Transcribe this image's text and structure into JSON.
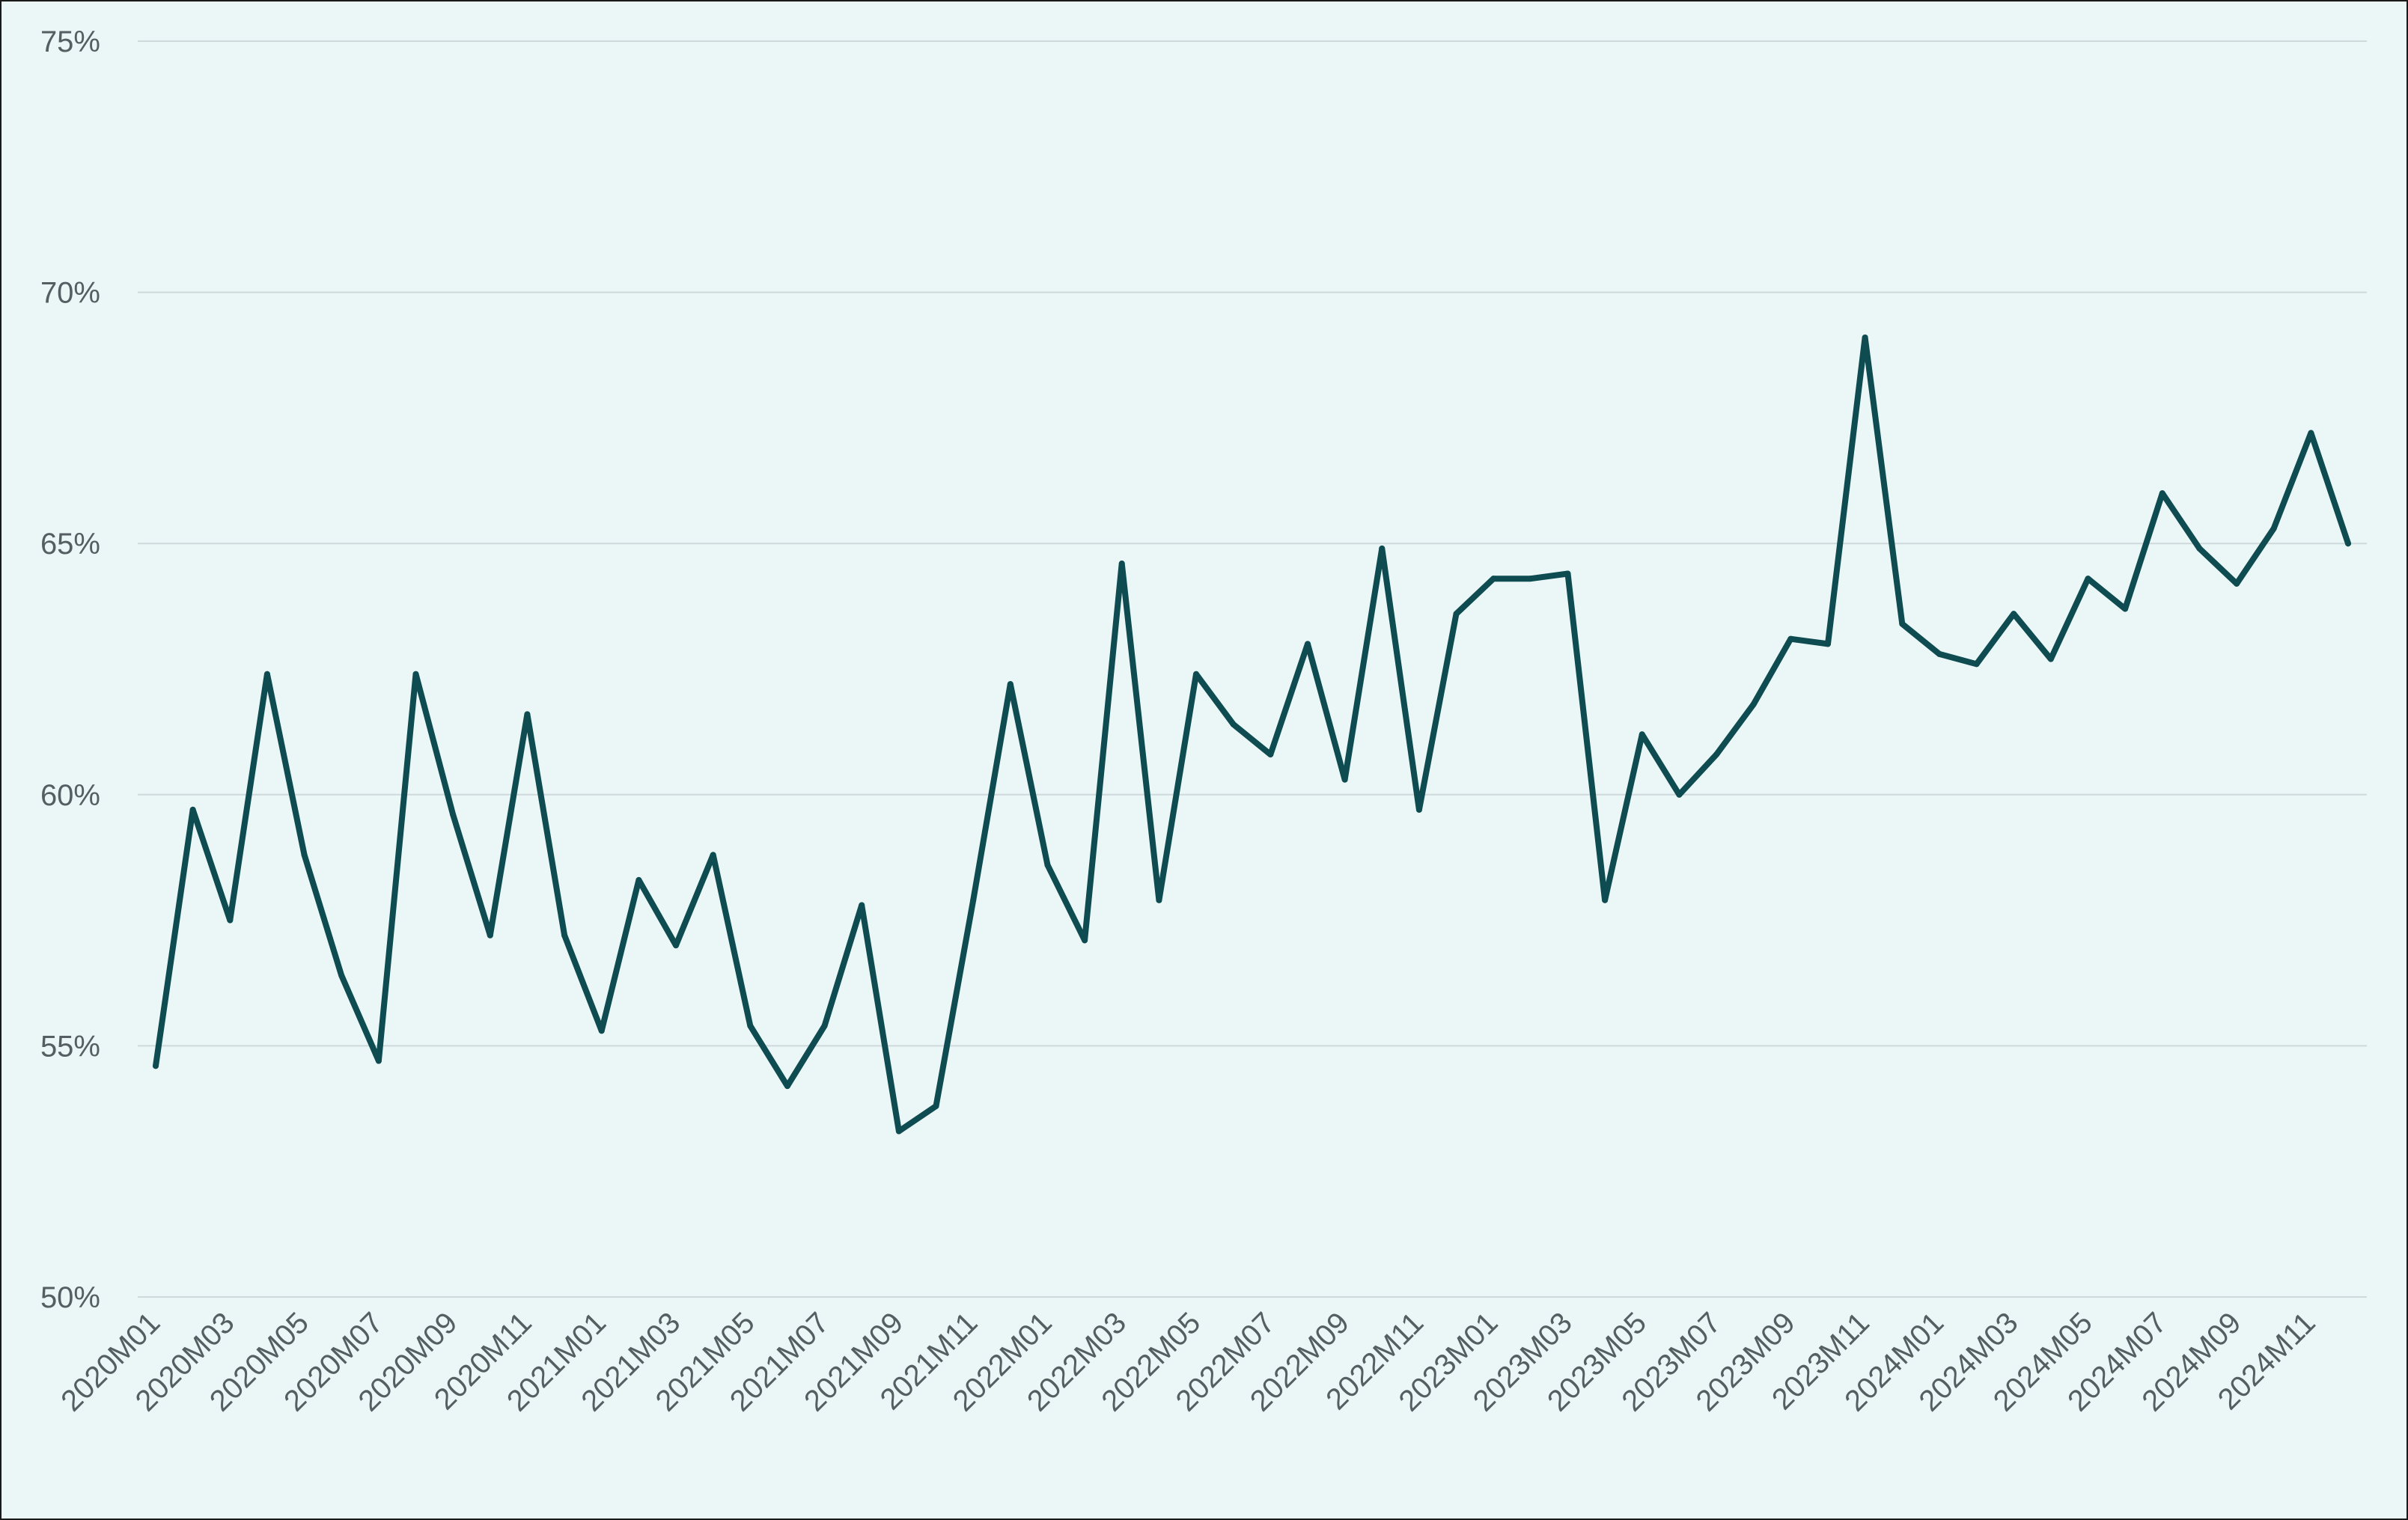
{
  "colors": {
    "background": "#eaf7f6",
    "grid": "#cfd8db",
    "line": "#0e4c52",
    "tick_text": "#555e62"
  },
  "chart_data": {
    "type": "line",
    "title": "",
    "xlabel": "",
    "ylabel": "",
    "ylim": [
      50,
      75
    ],
    "y_ticks": [
      50,
      55,
      60,
      65,
      70,
      75
    ],
    "y_tick_labels": [
      "50%",
      "55%",
      "60%",
      "65%",
      "70%",
      "75%"
    ],
    "grid": "horizontal",
    "legend": "none",
    "x": [
      "2020M01",
      "2020M02",
      "2020M03",
      "2020M04",
      "2020M05",
      "2020M06",
      "2020M07",
      "2020M08",
      "2020M09",
      "2020M10",
      "2020M11",
      "2020M12",
      "2021M01",
      "2021M02",
      "2021M03",
      "2021M04",
      "2021M05",
      "2021M06",
      "2021M07",
      "2021M08",
      "2021M09",
      "2021M10",
      "2021M11",
      "2021M12",
      "2022M01",
      "2022M02",
      "2022M03",
      "2022M04",
      "2022M05",
      "2022M06",
      "2022M07",
      "2022M08",
      "2022M09",
      "2022M10",
      "2022M11",
      "2022M12",
      "2023M01",
      "2023M02",
      "2023M03",
      "2023M04",
      "2023M05",
      "2023M06",
      "2023M07",
      "2023M08",
      "2023M09",
      "2023M10",
      "2023M11",
      "2023M12",
      "2024M01",
      "2024M02",
      "2024M03",
      "2024M04",
      "2024M05",
      "2024M06",
      "2024M07",
      "2024M08",
      "2024M09",
      "2024M10",
      "2024M11",
      "2024M12"
    ],
    "x_tick_labels": [
      "2020M01",
      "2020M03",
      "2020M05",
      "2020M07",
      "2020M09",
      "2020M11",
      "2021M01",
      "2021M03",
      "2021M05",
      "2021M07",
      "2021M09",
      "2021M11",
      "2022M01",
      "2022M03",
      "2022M05",
      "2022M07",
      "2022M09",
      "2022M11",
      "2023M01",
      "2023M03",
      "2023M05",
      "2023M07",
      "2023M09",
      "2023M11",
      "2024M01",
      "2024M03",
      "2024M05",
      "2024M07",
      "2024M09",
      "2024M11"
    ],
    "series": [
      {
        "values": [
          54.6,
          59.7,
          57.5,
          62.4,
          58.8,
          56.4,
          54.7,
          62.4,
          59.6,
          57.2,
          61.6,
          57.2,
          55.3,
          58.3,
          57.0,
          58.8,
          55.4,
          54.2,
          55.4,
          57.8,
          53.3,
          53.8,
          57.9,
          62.2,
          58.6,
          57.1,
          64.6,
          57.9,
          62.4,
          61.4,
          60.8,
          63.0,
          60.3,
          64.9,
          59.7,
          63.6,
          64.3,
          64.3,
          64.4,
          57.9,
          61.2,
          60.0,
          60.8,
          61.8,
          63.1,
          63.0,
          69.1,
          63.4,
          62.8,
          62.6,
          63.6,
          62.7,
          64.3,
          63.7,
          66.0,
          64.9,
          64.2,
          65.3,
          67.2,
          65.0
        ]
      }
    ]
  }
}
